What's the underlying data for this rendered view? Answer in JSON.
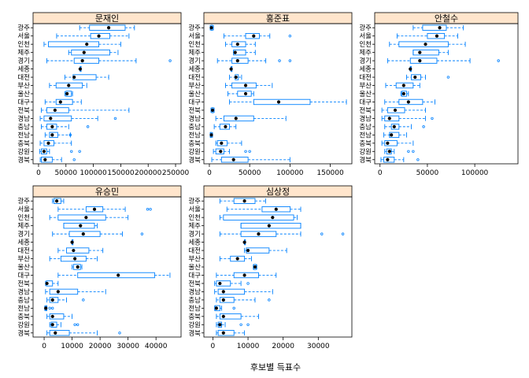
{
  "chart_data": {
    "type": "box",
    "xlabel": "후보별 득표수",
    "categories": [
      "광주",
      "서울",
      "인천",
      "제주",
      "경기",
      "세종",
      "대전",
      "부산",
      "울산",
      "대구",
      "전북",
      "경남",
      "충남",
      "전남",
      "충북",
      "강원",
      "경북"
    ],
    "colors": {
      "strip": "#ffe5cc",
      "box": "#0080ff",
      "dot": "#000000",
      "frame": "#000000"
    },
    "panels": [
      {
        "name": "문재인",
        "xlim": [
          0,
          250000
        ],
        "ticks": [
          0,
          50000,
          100000,
          150000,
          200000,
          250000
        ],
        "stats": [
          {
            "min": 75000,
            "q1": 93000,
            "med": 128000,
            "q3": 158000,
            "max": 175000,
            "out": []
          },
          {
            "min": 33000,
            "q1": 95000,
            "med": 110000,
            "q3": 130000,
            "max": 165000,
            "out": []
          },
          {
            "min": 10000,
            "q1": 18000,
            "med": 88000,
            "q3": 110000,
            "max": 150000,
            "out": []
          },
          {
            "min": 55000,
            "q1": 60000,
            "med": 83000,
            "q3": 130000,
            "max": 145000,
            "out": []
          },
          {
            "min": 15000,
            "q1": 65000,
            "med": 80000,
            "q3": 110000,
            "max": 178000,
            "out": [
              240000
            ]
          },
          {
            "min": 76000,
            "q1": 76000,
            "med": 76000,
            "q3": 76000,
            "max": 76000,
            "out": []
          },
          {
            "min": 48000,
            "q1": 63000,
            "med": 65000,
            "q3": 105000,
            "max": 128000,
            "out": []
          },
          {
            "min": 20000,
            "q1": 32000,
            "med": 55000,
            "q3": 80000,
            "max": 88000,
            "out": []
          },
          {
            "min": 48000,
            "q1": 50000,
            "med": 52000,
            "q3": 60000,
            "max": 62000,
            "out": []
          },
          {
            "min": 12000,
            "q1": 32000,
            "med": 40000,
            "q3": 62000,
            "max": 78000,
            "out": []
          },
          {
            "min": 5000,
            "q1": 15000,
            "med": 30000,
            "q3": 55000,
            "max": 165000,
            "out": []
          },
          {
            "min": 3000,
            "q1": 10000,
            "med": 22000,
            "q3": 60000,
            "max": 108000,
            "out": [
              140000
            ]
          },
          {
            "min": 5000,
            "q1": 15000,
            "med": 25000,
            "q3": 33000,
            "max": 55000,
            "out": [
              90000
            ]
          },
          {
            "min": 12000,
            "q1": 20000,
            "med": 25000,
            "q3": 35000,
            "max": 58000,
            "out": [
              58000
            ]
          },
          {
            "min": 3000,
            "q1": 10000,
            "med": 18000,
            "q3": 28000,
            "max": 60000,
            "out": []
          },
          {
            "min": 2000,
            "q1": 5000,
            "med": 10000,
            "q3": 15000,
            "max": 20000,
            "out": [
              60000,
              75000
            ]
          },
          {
            "min": 3000,
            "q1": 5000,
            "med": 12000,
            "q3": 25000,
            "max": 42000,
            "out": [
              65000
            ]
          }
        ]
      },
      {
        "name": "홍준표",
        "xlim": [
          0,
          170000
        ],
        "ticks": [
          0,
          50000,
          100000,
          150000
        ],
        "stats": [
          {
            "min": 1000,
            "q1": 2000,
            "med": 2500,
            "q3": 4000,
            "max": 5000,
            "out": []
          },
          {
            "min": 18000,
            "q1": 45000,
            "med": 55000,
            "q3": 62000,
            "max": 75000,
            "out": [
              100000
            ]
          },
          {
            "min": 20000,
            "q1": 28000,
            "med": 35000,
            "q3": 45000,
            "max": 57000,
            "out": []
          },
          {
            "min": 30000,
            "q1": 30000,
            "med": 32000,
            "q3": 45000,
            "max": 57000,
            "out": []
          },
          {
            "min": 10000,
            "q1": 28000,
            "med": 35000,
            "q3": 48000,
            "max": 70000,
            "out": [
              87000,
              100000
            ]
          },
          {
            "min": 27000,
            "q1": 27000,
            "med": 27000,
            "q3": 27000,
            "max": 27000,
            "out": []
          },
          {
            "min": 25000,
            "q1": 32000,
            "med": 33000,
            "q3": 36000,
            "max": 40000,
            "out": []
          },
          {
            "min": 20000,
            "q1": 28000,
            "med": 45000,
            "q3": 58000,
            "max": 78000,
            "out": []
          },
          {
            "min": 23000,
            "q1": 35000,
            "med": 45000,
            "q3": 52000,
            "max": 55000,
            "out": []
          },
          {
            "min": 25000,
            "q1": 55000,
            "med": 86000,
            "q3": 125000,
            "max": 170000,
            "out": []
          },
          {
            "min": 2000,
            "q1": 3000,
            "med": 4000,
            "q3": 5000,
            "max": 6000,
            "out": []
          },
          {
            "min": 8000,
            "q1": 18000,
            "med": 33000,
            "q3": 55000,
            "max": 95000,
            "out": []
          },
          {
            "min": 6000,
            "q1": 13000,
            "med": 20000,
            "q3": 25000,
            "max": 33000,
            "out": []
          },
          {
            "min": 1000,
            "q1": 1500,
            "med": 2500,
            "q3": 3000,
            "max": 4000,
            "out": []
          },
          {
            "min": 8000,
            "q1": 10000,
            "med": 15000,
            "q3": 22000,
            "max": 40000,
            "out": []
          },
          {
            "min": 5000,
            "q1": 8000,
            "med": 14000,
            "q3": 18000,
            "max": 25000,
            "out": [
              45000,
              50000
            ]
          },
          {
            "min": 3000,
            "q1": 15000,
            "med": 30000,
            "q3": 48000,
            "max": 100000,
            "out": []
          }
        ]
      },
      {
        "name": "안철수",
        "xlim": [
          0,
          140000
        ],
        "ticks": [
          0,
          50000,
          100000
        ],
        "stats": [
          {
            "min": 35000,
            "q1": 45000,
            "med": 63000,
            "q3": 70000,
            "max": 88000,
            "out": []
          },
          {
            "min": 18000,
            "q1": 50000,
            "med": 60000,
            "q3": 68000,
            "max": 82000,
            "out": []
          },
          {
            "min": 10000,
            "q1": 20000,
            "med": 48000,
            "q3": 72000,
            "max": 90000,
            "out": []
          },
          {
            "min": 35000,
            "q1": 35000,
            "med": 42000,
            "q3": 62000,
            "max": 72000,
            "out": []
          },
          {
            "min": 8000,
            "q1": 32000,
            "med": 42000,
            "q3": 60000,
            "max": 95000,
            "out": [
              125000
            ]
          },
          {
            "min": 32000,
            "q1": 32000,
            "med": 32000,
            "q3": 32000,
            "max": 32000,
            "out": []
          },
          {
            "min": 28000,
            "q1": 33000,
            "med": 37000,
            "q3": 43000,
            "max": 48000,
            "out": [
              72000
            ]
          },
          {
            "min": 6000,
            "q1": 17000,
            "med": 25000,
            "q3": 35000,
            "max": 42000,
            "out": []
          },
          {
            "min": 22000,
            "q1": 23000,
            "med": 25000,
            "q3": 28000,
            "max": 30000,
            "out": []
          },
          {
            "min": 5000,
            "q1": 20000,
            "med": 30000,
            "q3": 45000,
            "max": 58000,
            "out": []
          },
          {
            "min": 2000,
            "q1": 8000,
            "med": 16000,
            "q3": 26000,
            "max": 48000,
            "out": []
          },
          {
            "min": 2000,
            "q1": 5000,
            "med": 10000,
            "q3": 20000,
            "max": 48000,
            "out": [
              55000
            ]
          },
          {
            "min": 5000,
            "q1": 12000,
            "med": 15000,
            "q3": 20000,
            "max": 33000,
            "out": [
              46000
            ]
          },
          {
            "min": 4000,
            "q1": 10000,
            "med": 12000,
            "q3": 20000,
            "max": 28000,
            "out": []
          },
          {
            "min": 2000,
            "q1": 5000,
            "med": 8000,
            "q3": 18000,
            "max": 35000,
            "out": []
          },
          {
            "min": 5000,
            "q1": 7000,
            "med": 10000,
            "q3": 12000,
            "max": 15000,
            "out": [
              30000,
              35000
            ]
          },
          {
            "min": 1000,
            "q1": 4000,
            "med": 8000,
            "q3": 15000,
            "max": 25000,
            "out": [
              40000
            ]
          }
        ]
      },
      {
        "name": "유승민",
        "xlim": [
          -2000,
          47000
        ],
        "ticks": [
          0,
          10000,
          20000,
          30000,
          40000
        ],
        "stats": [
          {
            "min": 3000,
            "q1": 3500,
            "med": 4500,
            "q3": 6000,
            "max": 7000,
            "out": []
          },
          {
            "min": 5000,
            "q1": 15000,
            "med": 18000,
            "q3": 21000,
            "max": 29000,
            "out": [
              37000,
              38000
            ]
          },
          {
            "min": 2000,
            "q1": 5000,
            "med": 15000,
            "q3": 22000,
            "max": 30000,
            "out": []
          },
          {
            "min": 7000,
            "q1": 7000,
            "med": 13000,
            "q3": 18000,
            "max": 19000,
            "out": []
          },
          {
            "min": 3000,
            "q1": 9000,
            "med": 14000,
            "q3": 20000,
            "max": 28000,
            "out": [
              35000
            ]
          },
          {
            "min": 10000,
            "q1": 10000,
            "med": 10000,
            "q3": 10000,
            "max": 10000,
            "out": []
          },
          {
            "min": 5000,
            "q1": 8000,
            "med": 10500,
            "q3": 16000,
            "max": 21000,
            "out": []
          },
          {
            "min": 2000,
            "q1": 6000,
            "med": 11000,
            "q3": 15000,
            "max": 19000,
            "out": []
          },
          {
            "min": 10000,
            "q1": 10500,
            "med": 12000,
            "q3": 13000,
            "max": 13500,
            "out": []
          },
          {
            "min": 5000,
            "q1": 12000,
            "med": 26500,
            "q3": 39500,
            "max": 45000,
            "out": []
          },
          {
            "min": 500,
            "q1": 800,
            "med": 1000,
            "q3": 3000,
            "max": 5000,
            "out": []
          },
          {
            "min": 500,
            "q1": 2000,
            "med": 5000,
            "q3": 12000,
            "max": 22000,
            "out": []
          },
          {
            "min": 1000,
            "q1": 2000,
            "med": 3000,
            "q3": 5000,
            "max": 8000,
            "out": [
              14000
            ]
          },
          {
            "min": 200,
            "q1": 500,
            "med": 600,
            "q3": 800,
            "max": 1000,
            "out": [
              2000,
              3000
            ]
          },
          {
            "min": 1000,
            "q1": 2000,
            "med": 3000,
            "q3": 7000,
            "max": 10000,
            "out": []
          },
          {
            "min": 2000,
            "q1": 2500,
            "med": 3000,
            "q3": 4500,
            "max": 6000,
            "out": [
              11000,
              12000
            ]
          },
          {
            "min": 1000,
            "q1": 2000,
            "med": 4000,
            "q3": 9000,
            "max": 19000,
            "out": [
              27000
            ]
          }
        ]
      },
      {
        "name": "심상정",
        "xlim": [
          -1000,
          38000
        ],
        "ticks": [
          0,
          10000,
          20000,
          30000
        ],
        "stats": [
          {
            "min": 2000,
            "q1": 6000,
            "med": 9000,
            "q3": 12000,
            "max": 15000,
            "out": []
          },
          {
            "min": 4000,
            "q1": 14000,
            "med": 18000,
            "q3": 22000,
            "max": 25000,
            "out": []
          },
          {
            "min": 2000,
            "q1": 3000,
            "med": 17000,
            "q3": 23000,
            "max": 24000,
            "out": []
          },
          {
            "min": 8000,
            "q1": 8000,
            "med": 16000,
            "q3": 25000,
            "max": 25000,
            "out": []
          },
          {
            "min": 2000,
            "q1": 8000,
            "med": 13000,
            "q3": 18000,
            "max": 25000,
            "out": [
              31000,
              37000
            ]
          },
          {
            "min": 9000,
            "q1": 9000,
            "med": 9000,
            "q3": 9000,
            "max": 9000,
            "out": []
          },
          {
            "min": 9000,
            "q1": 9500,
            "med": 10000,
            "q3": 16000,
            "max": 21000,
            "out": []
          },
          {
            "min": 2000,
            "q1": 5000,
            "med": 7000,
            "q3": 9000,
            "max": 11000,
            "out": []
          },
          {
            "min": 11500,
            "q1": 11600,
            "med": 12000,
            "q3": 12300,
            "max": 12500,
            "out": []
          },
          {
            "min": 1000,
            "q1": 6000,
            "med": 9000,
            "q3": 13000,
            "max": 18000,
            "out": []
          },
          {
            "min": 500,
            "q1": 1000,
            "med": 2000,
            "q3": 5000,
            "max": 8000,
            "out": [
              10000
            ]
          },
          {
            "min": 500,
            "q1": 1500,
            "med": 3000,
            "q3": 9000,
            "max": 17000,
            "out": []
          },
          {
            "min": 1000,
            "q1": 2000,
            "med": 3000,
            "q3": 6000,
            "max": 12000,
            "out": [
              16000
            ]
          },
          {
            "min": 500,
            "q1": 600,
            "med": 1000,
            "q3": 2000,
            "max": 2500,
            "out": [
              6000
            ]
          },
          {
            "min": 1000,
            "q1": 2000,
            "med": 3000,
            "q3": 8000,
            "max": 13000,
            "out": []
          },
          {
            "min": 1000,
            "q1": 1500,
            "med": 2000,
            "q3": 2500,
            "max": 3500,
            "out": [
              8000,
              10000
            ]
          },
          {
            "min": 1000,
            "q1": 1500,
            "med": 3000,
            "q3": 6000,
            "max": 9000,
            "out": []
          }
        ]
      }
    ]
  }
}
